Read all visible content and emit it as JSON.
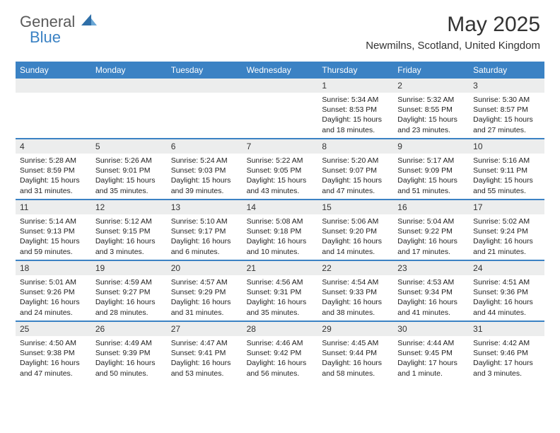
{
  "brand": {
    "general": "General",
    "blue": "Blue"
  },
  "title": "May 2025",
  "location": "Newmilns, Scotland, United Kingdom",
  "colors": {
    "accent": "#3b82c4",
    "dayband": "#eceded",
    "text": "#333333"
  },
  "weekdays": [
    "Sunday",
    "Monday",
    "Tuesday",
    "Wednesday",
    "Thursday",
    "Friday",
    "Saturday"
  ],
  "layout": {
    "first_weekday_index": 4,
    "days_in_month": 31
  },
  "days": [
    {
      "n": 1,
      "sr": "5:34 AM",
      "ss": "8:53 PM",
      "dl": "15 hours and 18 minutes."
    },
    {
      "n": 2,
      "sr": "5:32 AM",
      "ss": "8:55 PM",
      "dl": "15 hours and 23 minutes."
    },
    {
      "n": 3,
      "sr": "5:30 AM",
      "ss": "8:57 PM",
      "dl": "15 hours and 27 minutes."
    },
    {
      "n": 4,
      "sr": "5:28 AM",
      "ss": "8:59 PM",
      "dl": "15 hours and 31 minutes."
    },
    {
      "n": 5,
      "sr": "5:26 AM",
      "ss": "9:01 PM",
      "dl": "15 hours and 35 minutes."
    },
    {
      "n": 6,
      "sr": "5:24 AM",
      "ss": "9:03 PM",
      "dl": "15 hours and 39 minutes."
    },
    {
      "n": 7,
      "sr": "5:22 AM",
      "ss": "9:05 PM",
      "dl": "15 hours and 43 minutes."
    },
    {
      "n": 8,
      "sr": "5:20 AM",
      "ss": "9:07 PM",
      "dl": "15 hours and 47 minutes."
    },
    {
      "n": 9,
      "sr": "5:17 AM",
      "ss": "9:09 PM",
      "dl": "15 hours and 51 minutes."
    },
    {
      "n": 10,
      "sr": "5:16 AM",
      "ss": "9:11 PM",
      "dl": "15 hours and 55 minutes."
    },
    {
      "n": 11,
      "sr": "5:14 AM",
      "ss": "9:13 PM",
      "dl": "15 hours and 59 minutes."
    },
    {
      "n": 12,
      "sr": "5:12 AM",
      "ss": "9:15 PM",
      "dl": "16 hours and 3 minutes."
    },
    {
      "n": 13,
      "sr": "5:10 AM",
      "ss": "9:17 PM",
      "dl": "16 hours and 6 minutes."
    },
    {
      "n": 14,
      "sr": "5:08 AM",
      "ss": "9:18 PM",
      "dl": "16 hours and 10 minutes."
    },
    {
      "n": 15,
      "sr": "5:06 AM",
      "ss": "9:20 PM",
      "dl": "16 hours and 14 minutes."
    },
    {
      "n": 16,
      "sr": "5:04 AM",
      "ss": "9:22 PM",
      "dl": "16 hours and 17 minutes."
    },
    {
      "n": 17,
      "sr": "5:02 AM",
      "ss": "9:24 PM",
      "dl": "16 hours and 21 minutes."
    },
    {
      "n": 18,
      "sr": "5:01 AM",
      "ss": "9:26 PM",
      "dl": "16 hours and 24 minutes."
    },
    {
      "n": 19,
      "sr": "4:59 AM",
      "ss": "9:27 PM",
      "dl": "16 hours and 28 minutes."
    },
    {
      "n": 20,
      "sr": "4:57 AM",
      "ss": "9:29 PM",
      "dl": "16 hours and 31 minutes."
    },
    {
      "n": 21,
      "sr": "4:56 AM",
      "ss": "9:31 PM",
      "dl": "16 hours and 35 minutes."
    },
    {
      "n": 22,
      "sr": "4:54 AM",
      "ss": "9:33 PM",
      "dl": "16 hours and 38 minutes."
    },
    {
      "n": 23,
      "sr": "4:53 AM",
      "ss": "9:34 PM",
      "dl": "16 hours and 41 minutes."
    },
    {
      "n": 24,
      "sr": "4:51 AM",
      "ss": "9:36 PM",
      "dl": "16 hours and 44 minutes."
    },
    {
      "n": 25,
      "sr": "4:50 AM",
      "ss": "9:38 PM",
      "dl": "16 hours and 47 minutes."
    },
    {
      "n": 26,
      "sr": "4:49 AM",
      "ss": "9:39 PM",
      "dl": "16 hours and 50 minutes."
    },
    {
      "n": 27,
      "sr": "4:47 AM",
      "ss": "9:41 PM",
      "dl": "16 hours and 53 minutes."
    },
    {
      "n": 28,
      "sr": "4:46 AM",
      "ss": "9:42 PM",
      "dl": "16 hours and 56 minutes."
    },
    {
      "n": 29,
      "sr": "4:45 AM",
      "ss": "9:44 PM",
      "dl": "16 hours and 58 minutes."
    },
    {
      "n": 30,
      "sr": "4:44 AM",
      "ss": "9:45 PM",
      "dl": "17 hours and 1 minute."
    },
    {
      "n": 31,
      "sr": "4:42 AM",
      "ss": "9:46 PM",
      "dl": "17 hours and 3 minutes."
    }
  ],
  "labels": {
    "sunrise": "Sunrise:",
    "sunset": "Sunset:",
    "daylight": "Daylight:"
  }
}
